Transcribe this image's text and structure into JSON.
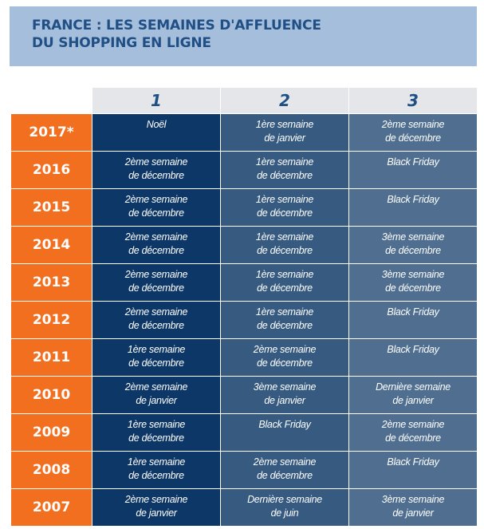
{
  "title": {
    "line1": "FRANCE : LES SEMAINES D'AFFLUENCE",
    "line2": "DU SHOPPING EN LIGNE"
  },
  "headers": [
    "1",
    "2",
    "3"
  ],
  "rows": [
    {
      "year": "2017*",
      "cells": [
        "Noël",
        "1ère semaine\nde janvier",
        "2ème semaine\nde décembre"
      ]
    },
    {
      "year": "2016",
      "cells": [
        "2ème semaine\nde décembre",
        "1ère semaine\nde décembre",
        "Black Friday"
      ]
    },
    {
      "year": "2015",
      "cells": [
        "2ème semaine\nde décembre",
        "1ère semaine\nde décembre",
        "Black Friday"
      ]
    },
    {
      "year": "2014",
      "cells": [
        "2ème semaine\nde décembre",
        "1ère semaine\nde décembre",
        "3ème semaine\nde décembre"
      ]
    },
    {
      "year": "2013",
      "cells": [
        "2ème semaine\nde décembre",
        "1ère semaine\nde décembre",
        "3ème semaine\nde  décembre"
      ]
    },
    {
      "year": "2012",
      "cells": [
        "2ème semaine\nde décembre",
        "1ère semaine\nde décembre",
        "Black Friday"
      ]
    },
    {
      "year": "2011",
      "cells": [
        "1ère semaine\nde décembre",
        "2ème semaine\nde décembre",
        "Black Friday"
      ]
    },
    {
      "year": "2010",
      "cells": [
        "2ème semaine\nde janvier",
        "3ème semaine\nde janvier",
        "Dernière semaine\nde janvier"
      ]
    },
    {
      "year": "2009",
      "cells": [
        "1ère semaine\nde décembre",
        "Black Friday",
        "2ème semaine\nde décembre"
      ]
    },
    {
      "year": "2008",
      "cells": [
        "1ère semaine\nde décembre",
        "2ème semaine\nde décembre",
        "Black Friday"
      ]
    },
    {
      "year": "2007",
      "cells": [
        "2ème semaine\nde janvier",
        "Dernière semaine\nde juin",
        "3ème semaine\nde janvier"
      ]
    }
  ],
  "colors": {
    "title_bg": "#a5bedb",
    "title_text": "#1f4f85",
    "year_bg": "#f36f20",
    "col1_bg": "#0d3766",
    "col2_bg": "#365a80",
    "col3_bg": "#506f90",
    "header_bg": "#e4e6e9"
  }
}
